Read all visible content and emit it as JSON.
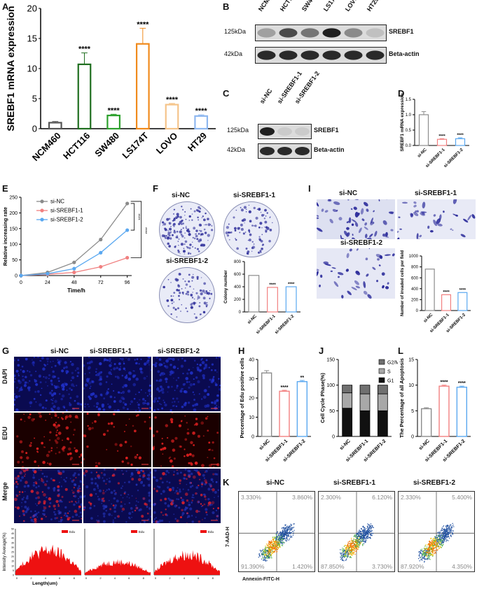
{
  "panels": [
    "A",
    "B",
    "C",
    "D",
    "E",
    "F",
    "G",
    "H",
    "I",
    "J",
    "K",
    "L"
  ],
  "A": {
    "ylabel": "SREBF1 mRNA expression",
    "ylim": [
      0,
      20
    ],
    "yticks": [
      "0",
      "5",
      "10",
      "15",
      "20"
    ],
    "categories": [
      "NCM460",
      "HCT116",
      "SW480",
      "LS174T",
      "LOVO",
      "HT29"
    ],
    "values": [
      1.0,
      10.7,
      2.2,
      14.1,
      4.0,
      2.1
    ],
    "errors": [
      0.2,
      1.9,
      0.2,
      2.6,
      0.2,
      0.2
    ],
    "sig": [
      "",
      "****",
      "****",
      "****",
      "****",
      "****"
    ],
    "colors": [
      "#555555",
      "#1f6e1f",
      "#2ca02c",
      "#f08a1c",
      "#f5c48a",
      "#8fb8f0"
    ]
  },
  "B": {
    "lanes": [
      "NCM460",
      "HCT116",
      "SW480",
      "LS174T",
      "LOVO",
      "HT29"
    ],
    "rows": [
      {
        "kda": "125kDa",
        "name": "SREBF1",
        "intensity": [
          0.35,
          0.75,
          0.55,
          0.95,
          0.45,
          0.2
        ]
      },
      {
        "kda": "42kDa",
        "name": "Beta-actin",
        "intensity": [
          0.9,
          0.9,
          0.9,
          0.9,
          0.9,
          0.9
        ]
      }
    ]
  },
  "C": {
    "lanes": [
      "si-NC",
      "si-SREBF1-1",
      "si-SREBF1-2"
    ],
    "rows": [
      {
        "kda": "125kDa",
        "name": "SREBF1",
        "intensity": [
          0.95,
          0.15,
          0.15
        ]
      },
      {
        "kda": "42kDa",
        "name": "Beta-actin",
        "intensity": [
          0.9,
          0.9,
          0.9
        ]
      }
    ]
  },
  "D": {
    "ylabel": "SREBF1 mRNA expression",
    "ylim": [
      0,
      1.5
    ],
    "yticks": [
      "0.0",
      "0.5",
      "1.0",
      "1.5"
    ],
    "categories": [
      "si-NC",
      "si-SREBF1-1",
      "si-SREBF1-2"
    ],
    "values": [
      1.0,
      0.2,
      0.22
    ],
    "errors": [
      0.1,
      0.02,
      0.03
    ],
    "sig": [
      "",
      "****",
      "****"
    ],
    "colors": [
      "#8c8c8c",
      "#f28080",
      "#5aa8f0"
    ]
  },
  "E": {
    "xlabel": "Time/h",
    "ylabel": "Relative increasing rate",
    "x": [
      0,
      24,
      48,
      72,
      96
    ],
    "xlim": [
      0,
      100
    ],
    "ylim": [
      0,
      250
    ],
    "yticks": [
      "0",
      "50",
      "100",
      "150",
      "200",
      "250"
    ],
    "series": [
      {
        "name": "si-NC",
        "values": [
          0,
          10,
          42,
          115,
          230
        ],
        "color": "#8a8a8a"
      },
      {
        "name": "si-SREBF1-1",
        "values": [
          0,
          4,
          10,
          28,
          57
        ],
        "color": "#f08080"
      },
      {
        "name": "si-SREBF1-2",
        "values": [
          0,
          6,
          22,
          73,
          145
        ],
        "color": "#5aa8f0"
      }
    ],
    "sig": [
      "****",
      "****"
    ]
  },
  "F": {
    "dishes": [
      "si-NC",
      "si-SREBF1-1",
      "si-SREBF1-2"
    ],
    "ylabel": "Colony number",
    "ylim": [
      0,
      800
    ],
    "yticks": [
      "0",
      "200",
      "400",
      "600",
      "800"
    ],
    "categories": [
      "si-NC",
      "si-SREBF1-1",
      "si-SREBF1-2"
    ],
    "values": [
      580,
      390,
      400
    ],
    "sig": [
      "",
      "****",
      "****"
    ],
    "colors": [
      "#8c8c8c",
      "#f28080",
      "#5aa8f0"
    ]
  },
  "I": {
    "images": [
      "si-NC",
      "si-SREBF1-1",
      "si-SREBF1-2"
    ],
    "ylabel": "Number of invaded cells per field",
    "ylim": [
      0,
      1000
    ],
    "yticks": [
      "0",
      "200",
      "400",
      "600",
      "800",
      "1000"
    ],
    "categories": [
      "si-NC",
      "si-SREBF1-1",
      "si-SREBF1-2"
    ],
    "values": [
      760,
      290,
      330
    ],
    "sig": [
      "",
      "****",
      "****"
    ],
    "colors": [
      "#8c8c8c",
      "#f28080",
      "#5aa8f0"
    ]
  },
  "G": {
    "columns": [
      "si-NC",
      "si-SREBF1-1",
      "si-SREBF1-2"
    ],
    "rows": [
      "DAPI",
      "EDU",
      "Merge"
    ],
    "hist_ylabel": "Intensity Average(%)",
    "hist_xlabel": "Length(um)",
    "hist_legend": "Edu",
    "hist_yticks": [
      "0",
      "5",
      "10",
      "15",
      "20",
      "25",
      "30",
      "35",
      "40",
      "45",
      "50"
    ],
    "hist_xticks": [
      "0",
      "2",
      "4",
      "6",
      "8"
    ]
  },
  "H": {
    "ylabel": "Percentage of Edu positive cells",
    "ylim": [
      0,
      40
    ],
    "yticks": [
      "0",
      "10",
      "20",
      "30",
      "40"
    ],
    "categories": [
      "si-NC",
      "si-SREBF1-1",
      "si-SREBF1-2"
    ],
    "values": [
      33,
      23.5,
      28.5
    ],
    "errors": [
      1.2,
      0.5,
      0.6
    ],
    "sig": [
      "",
      "****",
      "**"
    ],
    "colors": [
      "#8c8c8c",
      "#f28080",
      "#5aa8f0"
    ]
  },
  "J": {
    "ylabel": "Cell Cycle Phase(%)",
    "ylim": [
      0,
      150
    ],
    "yticks": [
      "0",
      "50",
      "100",
      "150"
    ],
    "categories": [
      "si-NC",
      "si-SREBF1-1",
      "si-SREBF1-2"
    ],
    "series": [
      {
        "name": "G1",
        "values": [
          55,
          50,
          50
        ],
        "color": "#111111"
      },
      {
        "name": "S",
        "values": [
          30,
          33,
          33
        ],
        "color": "#a8a8a8"
      },
      {
        "name": "G2/M",
        "values": [
          15,
          17,
          17
        ],
        "color": "#707070"
      }
    ],
    "legend": [
      "G2/M",
      "S",
      "G1"
    ]
  },
  "L": {
    "ylabel": "The Percentage of all Apoptosis",
    "ylim": [
      0,
      15
    ],
    "yticks": [
      "0",
      "5",
      "10",
      "15"
    ],
    "categories": [
      "si-NC",
      "si-SREBF1-1",
      "si-SREBF1-2"
    ],
    "values": [
      5.4,
      9.8,
      9.6
    ],
    "errors": [
      0.2,
      0.2,
      0.2
    ],
    "sig": [
      "",
      "****",
      "****"
    ],
    "colors": [
      "#8c8c8c",
      "#f28080",
      "#5aa8f0"
    ]
  },
  "K": {
    "ylabel": "7-AAD-H",
    "xlabel": "Annexin-FITC-H",
    "plots": [
      {
        "title": "si-NC",
        "ul": "3.330%",
        "ur": "3.860%",
        "ll": "91.390%",
        "lr": "1.420%"
      },
      {
        "title": "si-SREBF1-1",
        "ul": "2.300%",
        "ur": "6.120%",
        "ll": "87.850%",
        "lr": "3.730%"
      },
      {
        "title": "si-SREBF1-2",
        "ul": "2.330%",
        "ur": "5.400%",
        "ll": "87.920%",
        "lr": "4.350%"
      }
    ]
  }
}
